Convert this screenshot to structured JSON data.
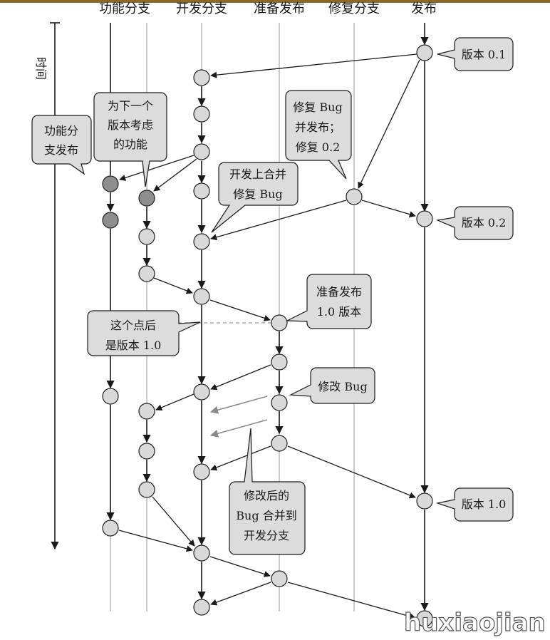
{
  "lanes": [
    {
      "id": "feature",
      "label": "功能分支"
    },
    {
      "id": "develop",
      "label": "开发分支"
    },
    {
      "id": "release",
      "label": "准备发布"
    },
    {
      "id": "hotfix",
      "label": "修复分支"
    },
    {
      "id": "master",
      "label": "发布"
    }
  ],
  "time_label": "时间",
  "callouts": {
    "v01": "版本 0.1",
    "v02": "版本 0.2",
    "v10": "版本 1.0",
    "feature_release": [
      "功能分",
      "支发布"
    ],
    "next_features": [
      "为下一个",
      "版本考虑",
      "的功能"
    ],
    "hotfix": [
      "修复 Bug",
      "并发布；",
      "修复 0.2"
    ],
    "merge_fix": [
      "开发上合并",
      "修复 Bug"
    ],
    "prepare": [
      "准备发布",
      "1.0 版本"
    ],
    "after_point": [
      "这个点后",
      "是版本 1.0"
    ],
    "fix_bug": "修改 Bug",
    "merged": [
      "修改后的",
      "Bug 合并到",
      "开发分支"
    ]
  },
  "watermark": "huxiaojian",
  "colors": {
    "header_bar": "#8a6a2c",
    "node_fill": "#d9d9d9",
    "node_dark": "#8e8e8e",
    "callout_fill": "#dcdcdc"
  }
}
